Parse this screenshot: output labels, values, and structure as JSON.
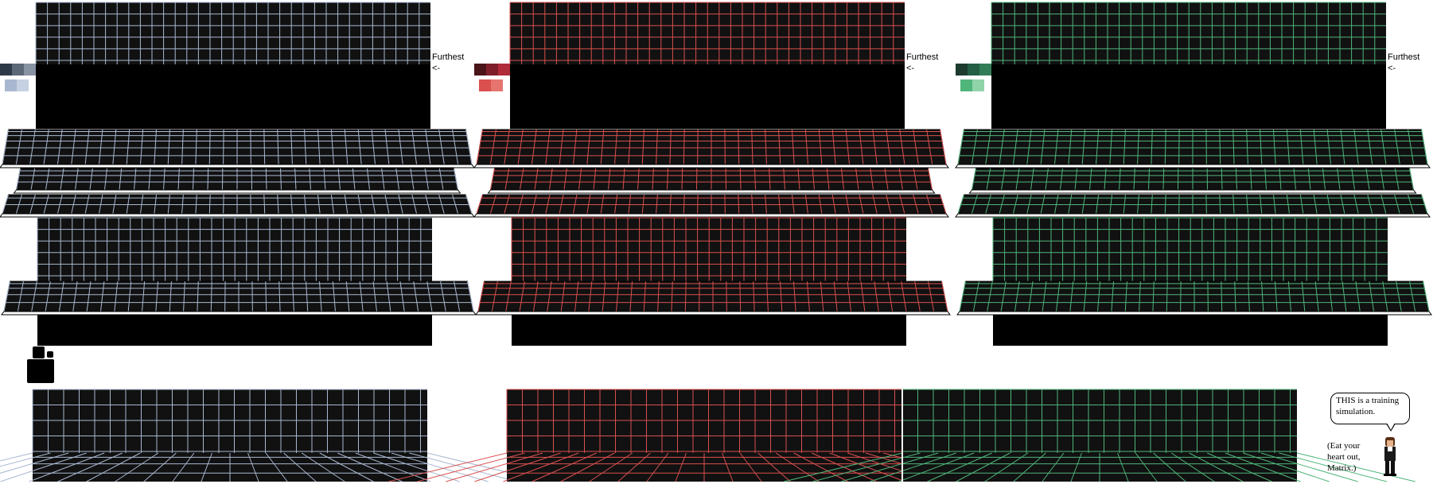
{
  "themes": [
    {
      "name": "blue",
      "line_color": "#a9b8d0",
      "palette": [
        "#2f3a48",
        "#5c6878",
        "#8792a3",
        "#a9b8d0",
        "#c6d2e3"
      ]
    },
    {
      "name": "red",
      "line_color": "#d9504f",
      "palette": [
        "#4a1519",
        "#7e1f2a",
        "#b02c3a",
        "#d9504f",
        "#e6756f"
      ]
    },
    {
      "name": "green",
      "line_color": "#4fb57a",
      "palette": [
        "#1c3b2e",
        "#245e45",
        "#327d58",
        "#4fb57a",
        "#8fd4a8"
      ]
    }
  ],
  "labels": {
    "furthest": "Furthest",
    "arrow": "<-"
  },
  "speech": {
    "bubble_text": "THIS is a training simulation.",
    "aside_text": "(Eat your heart out, Matrix.)"
  },
  "colors": {
    "background": "#ffffff",
    "panel_fill": "#111111",
    "deep_black": "#000000",
    "platform_edge": "#ffffff"
  }
}
